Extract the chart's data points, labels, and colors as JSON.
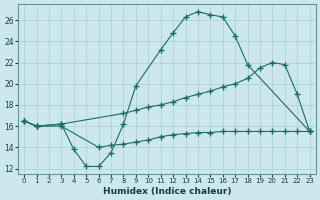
{
  "title": "",
  "xlabel": "Humidex (Indice chaleur)",
  "ylabel": "",
  "background_color": "#cce8ec",
  "grid_color": "#aacfd4",
  "line_color": "#1a6b6b",
  "xlim": [
    -0.5,
    23.5
  ],
  "ylim": [
    11.5,
    27.5
  ],
  "xticks": [
    0,
    1,
    2,
    3,
    4,
    5,
    6,
    7,
    8,
    9,
    10,
    11,
    12,
    13,
    14,
    15,
    16,
    17,
    18,
    19,
    20,
    21,
    22,
    23
  ],
  "yticks": [
    12,
    14,
    16,
    18,
    20,
    22,
    24,
    26
  ],
  "series": [
    {
      "x": [
        0,
        1,
        3,
        4,
        5,
        6,
        7,
        8,
        9,
        11,
        12,
        13,
        14,
        15,
        16,
        17,
        18,
        23
      ],
      "y": [
        16.5,
        16.0,
        16.2,
        13.8,
        12.2,
        12.2,
        13.5,
        16.2,
        19.8,
        23.2,
        24.8,
        26.3,
        26.8,
        26.5,
        26.3,
        24.5,
        21.8,
        15.5
      ]
    },
    {
      "x": [
        0,
        1,
        3,
        8,
        9,
        10,
        11,
        12,
        13,
        14,
        15,
        16,
        17,
        18,
        19,
        20,
        21,
        22,
        23
      ],
      "y": [
        16.5,
        16.0,
        16.2,
        17.2,
        17.5,
        17.8,
        18.0,
        18.3,
        18.7,
        19.0,
        19.3,
        19.7,
        20.0,
        20.5,
        21.5,
        22.0,
        21.8,
        19.0,
        15.5
      ]
    },
    {
      "x": [
        0,
        1,
        3,
        6,
        7,
        8,
        9,
        10,
        11,
        12,
        13,
        14,
        15,
        16,
        17,
        18,
        19,
        20,
        21,
        22,
        23
      ],
      "y": [
        16.5,
        16.0,
        16.0,
        14.0,
        14.2,
        14.3,
        14.5,
        14.7,
        15.0,
        15.2,
        15.3,
        15.4,
        15.4,
        15.5,
        15.5,
        15.5,
        15.5,
        15.5,
        15.5,
        15.5,
        15.5
      ]
    }
  ]
}
